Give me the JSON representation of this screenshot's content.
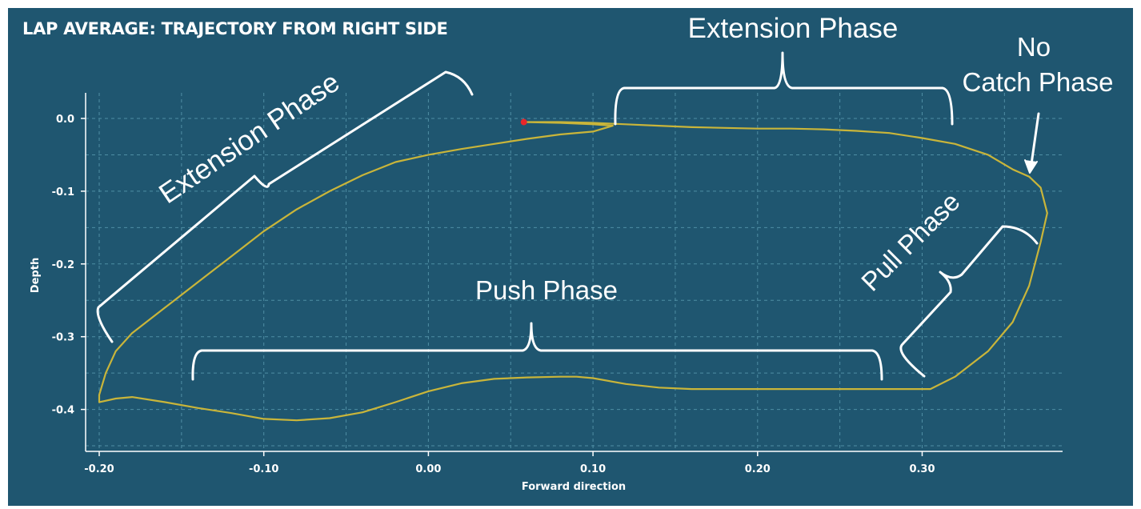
{
  "chart_data": {
    "type": "line",
    "title": "LAP AVERAGE: TRAJECTORY FROM RIGHT SIDE",
    "xlabel": "Forward direction",
    "ylabel": "Depth",
    "xlim": [
      -0.2,
      0.38
    ],
    "ylim": [
      -0.45,
      0.0
    ],
    "x_ticks": [
      -0.2,
      -0.1,
      0.0,
      0.1,
      0.2,
      0.3
    ],
    "x_tick_labels": [
      "-0.20",
      "-0.10",
      "0.00",
      "0.10",
      "0.20",
      "0.30"
    ],
    "y_ticks": [
      0.0,
      -0.1,
      -0.2,
      -0.3,
      -0.4
    ],
    "y_tick_labels": [
      "0.0",
      "-0.1",
      "-0.2",
      "-0.3",
      "-0.4"
    ],
    "grid": true,
    "colors": {
      "background": "#1f5670",
      "trajectory": "#c9b53a",
      "start_marker": "#e8262a",
      "grid": "#4f8ea4",
      "text": "#ffffff"
    },
    "start_point": {
      "x": 0.058,
      "y": -0.005
    },
    "series": [
      {
        "x": [
          0.058,
          0.08,
          0.1,
          0.112,
          0.1,
          0.08,
          0.06,
          0.04,
          0.02,
          0.0,
          -0.02,
          -0.04,
          -0.06,
          -0.08,
          -0.1,
          -0.12,
          -0.14,
          -0.16,
          -0.18,
          -0.19,
          -0.196,
          -0.2,
          -0.2,
          -0.19,
          -0.18,
          -0.16,
          -0.14,
          -0.12,
          -0.1,
          -0.08,
          -0.06,
          -0.04,
          -0.02,
          0.0,
          0.02,
          0.04,
          0.06,
          0.08,
          0.09,
          0.1,
          0.12,
          0.14,
          0.16,
          0.2,
          0.24,
          0.28,
          0.305,
          0.32,
          0.34,
          0.355,
          0.365,
          0.372,
          0.376,
          0.372,
          0.365,
          0.355,
          0.34,
          0.32,
          0.3,
          0.28,
          0.26,
          0.24,
          0.22,
          0.2,
          0.18,
          0.16,
          0.14,
          0.12,
          0.1,
          0.08,
          0.058
        ],
        "y": [
          -0.005,
          -0.006,
          -0.008,
          -0.01,
          -0.018,
          -0.022,
          -0.028,
          -0.035,
          -0.042,
          -0.05,
          -0.06,
          -0.078,
          -0.1,
          -0.125,
          -0.155,
          -0.19,
          -0.225,
          -0.26,
          -0.295,
          -0.32,
          -0.35,
          -0.38,
          -0.39,
          -0.385,
          -0.383,
          -0.39,
          -0.398,
          -0.405,
          -0.413,
          -0.415,
          -0.412,
          -0.404,
          -0.39,
          -0.375,
          -0.364,
          -0.358,
          -0.356,
          -0.355,
          -0.355,
          -0.357,
          -0.365,
          -0.37,
          -0.372,
          -0.372,
          -0.372,
          -0.372,
          -0.372,
          -0.355,
          -0.32,
          -0.28,
          -0.23,
          -0.17,
          -0.13,
          -0.095,
          -0.08,
          -0.07,
          -0.05,
          -0.035,
          -0.027,
          -0.02,
          -0.017,
          -0.015,
          -0.014,
          -0.014,
          -0.013,
          -0.012,
          -0.01,
          -0.008,
          -0.006,
          -0.005,
          -0.005
        ]
      }
    ]
  },
  "annotations": [
    {
      "text": "Extension Phase",
      "id": "extension-diagonal"
    },
    {
      "text": "Extension Phase",
      "id": "extension-top"
    },
    {
      "text": "No",
      "id": "no-catch-line1"
    },
    {
      "text": "Catch Phase",
      "id": "no-catch-line2"
    },
    {
      "text": "Pull Phase",
      "id": "pull"
    },
    {
      "text": "Push Phase",
      "id": "push"
    }
  ]
}
